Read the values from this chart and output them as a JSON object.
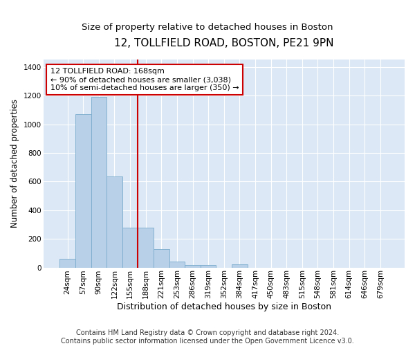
{
  "title": "12, TOLLFIELD ROAD, BOSTON, PE21 9PN",
  "subtitle": "Size of property relative to detached houses in Boston",
  "xlabel": "Distribution of detached houses by size in Boston",
  "ylabel": "Number of detached properties",
  "categories": [
    "24sqm",
    "57sqm",
    "90sqm",
    "122sqm",
    "155sqm",
    "188sqm",
    "221sqm",
    "253sqm",
    "286sqm",
    "319sqm",
    "352sqm",
    "384sqm",
    "417sqm",
    "450sqm",
    "483sqm",
    "515sqm",
    "548sqm",
    "581sqm",
    "614sqm",
    "646sqm",
    "679sqm"
  ],
  "values": [
    60,
    1070,
    1190,
    635,
    280,
    280,
    130,
    40,
    18,
    18,
    0,
    22,
    0,
    0,
    0,
    0,
    0,
    0,
    0,
    0,
    0
  ],
  "bar_color": "#b8d0e8",
  "bar_edge_color": "#7aabcc",
  "vline_x": 4.5,
  "vline_color": "#cc0000",
  "annotation_text": "12 TOLLFIELD ROAD: 168sqm\n← 90% of detached houses are smaller (3,038)\n10% of semi-detached houses are larger (350) →",
  "annotation_box_color": "#ffffff",
  "annotation_box_edge": "#cc0000",
  "ylim": [
    0,
    1450
  ],
  "yticks": [
    0,
    200,
    400,
    600,
    800,
    1000,
    1200,
    1400
  ],
  "fig_bg": "#ffffff",
  "ax_bg": "#dce8f5",
  "grid_color": "#ffffff",
  "footer": "Contains HM Land Registry data © Crown copyright and database right 2024.\nContains public sector information licensed under the Open Government Licence v3.0.",
  "title_fontsize": 11,
  "subtitle_fontsize": 9.5,
  "xlabel_fontsize": 9,
  "ylabel_fontsize": 8.5,
  "tick_fontsize": 7.5,
  "annotation_fontsize": 8,
  "footer_fontsize": 7
}
